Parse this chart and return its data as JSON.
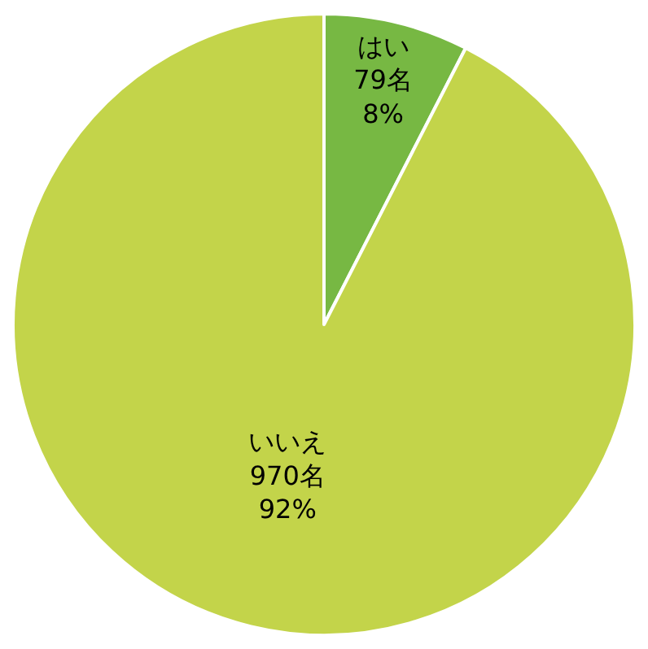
{
  "chart_data": {
    "type": "pie",
    "categories": [
      "はい",
      "いいえ"
    ],
    "values": [
      79,
      970
    ],
    "colors": [
      "#77b843",
      "#c3d44a"
    ],
    "value_labels": [
      "79名\n8%",
      "970名\n92%"
    ],
    "legend": false
  }
}
